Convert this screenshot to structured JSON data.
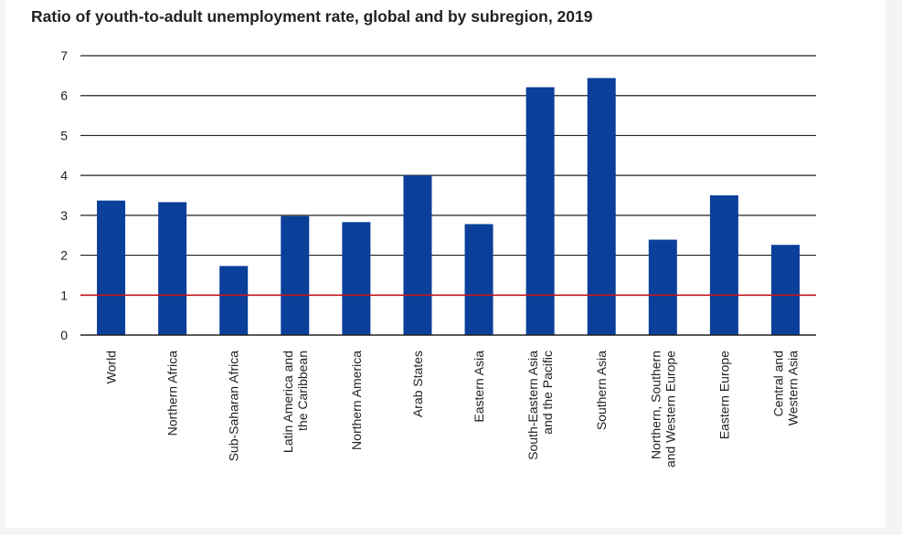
{
  "chart_data": {
    "type": "bar",
    "title": "Ratio of youth-to-adult unemployment rate, global and by subregion, 2019",
    "categories": [
      [
        "World"
      ],
      [
        "Northern Africa"
      ],
      [
        "Sub-Saharan Africa"
      ],
      [
        "Latin America and",
        "the Caribbean"
      ],
      [
        "Northern America"
      ],
      [
        "Arab States"
      ],
      [
        "Eastern Asia"
      ],
      [
        "South-Eastern Asia",
        "and the Pacific"
      ],
      [
        "Southern Asia"
      ],
      [
        "Northern, Southern",
        "and Western Europe"
      ],
      [
        "Eastern Europe"
      ],
      [
        "Central and",
        "Western Asia"
      ]
    ],
    "values": [
      3.37,
      3.33,
      1.73,
      2.98,
      2.83,
      4.0,
      2.78,
      6.21,
      6.44,
      2.39,
      3.5,
      2.26
    ],
    "reference_line": 1,
    "ylim": [
      0,
      7
    ],
    "yticks": [
      0,
      1,
      2,
      3,
      4,
      5,
      6,
      7
    ],
    "xlabel": "",
    "ylabel": "",
    "grid": true,
    "colors": {
      "bar": "#0a3f9a",
      "grid": "#222222",
      "reference": "#c4161c",
      "text": "#222222"
    }
  }
}
